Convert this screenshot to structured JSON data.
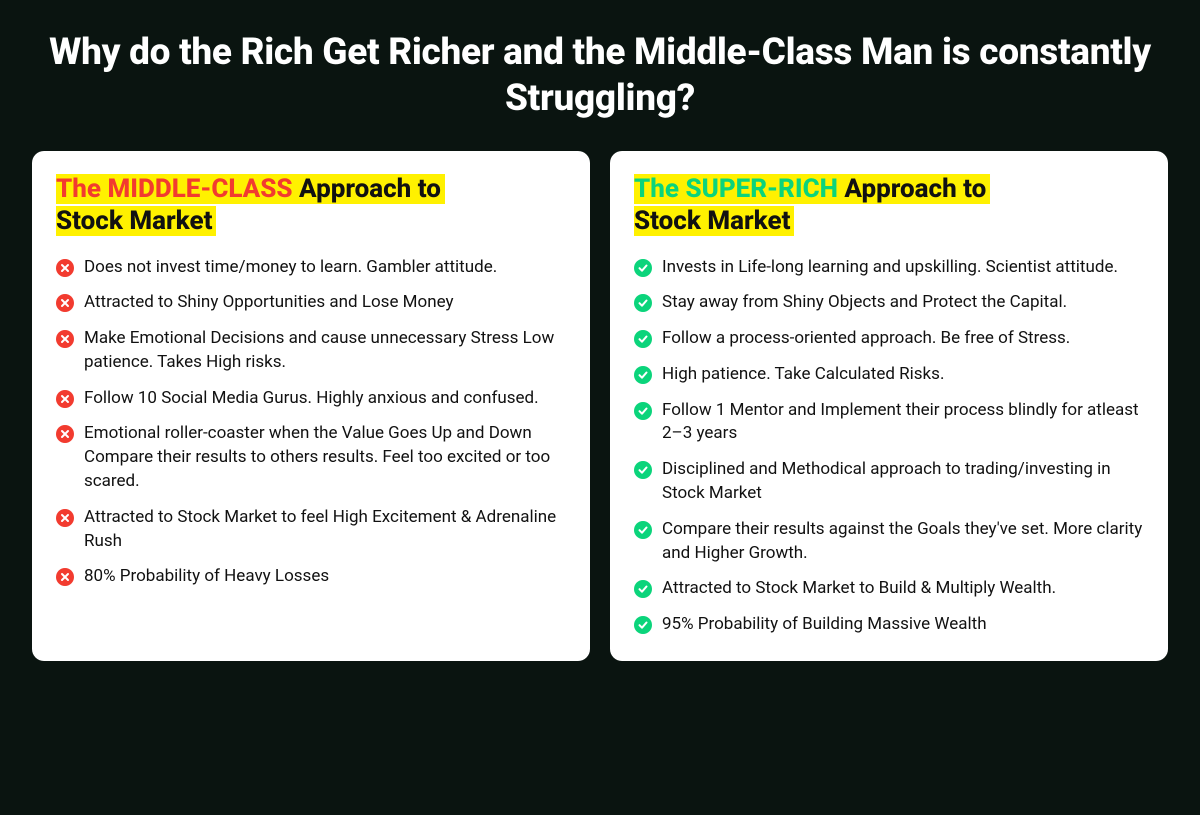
{
  "title": "Why do the Rich Get Richer and the Middle-Class Man is constantly Struggling?",
  "left": {
    "title_the": "The ",
    "title_key": "MIDDLE-CLASS",
    "title_tail_line1": " Approach to",
    "title_tail_line2": "Stock Market",
    "key_color": "#f23b2f",
    "highlight_color": "#fff100",
    "icon_color": "#f23b2f",
    "items": [
      "Does not invest time/money to learn. Gambler attitude.",
      "Attracted to Shiny Opportunities and Lose Money",
      "Make Emotional Decisions and cause unnecessary Stress Low patience. Takes High risks.",
      "Follow 10 Social Media Gurus. Highly anxious and confused.",
      "Emotional roller-coaster when the Value Goes Up and Down Compare their results to others results. Feel too excited or too scared.",
      "Attracted to Stock Market to feel High Excitement & Adrenaline Rush",
      "80% Probability of Heavy Losses"
    ]
  },
  "right": {
    "title_the": "The ",
    "title_key": "SUPER-RICH",
    "title_tail_line1": " Approach to",
    "title_tail_line2": "Stock Market",
    "key_color": "#0bd47b",
    "highlight_color": "#fff100",
    "icon_color": "#0bd47b",
    "items": [
      "Invests in Life-long learning and upskilling. Scientist attitude.",
      "Stay away from Shiny Objects and Protect the Capital.",
      "Follow a process-oriented approach. Be free of Stress.",
      "High patience. Take Calculated Risks.",
      "Follow 1 Mentor and Implement their process blindly for atleast 2–3 years",
      "Disciplined and Methodical approach to trading/investing in Stock Market",
      "Compare their results against the Goals they've set. More clarity and Higher Growth.",
      "Attracted to Stock Market to Build & Multiply Wealth.",
      "95% Probability of Building Massive Wealth"
    ]
  }
}
